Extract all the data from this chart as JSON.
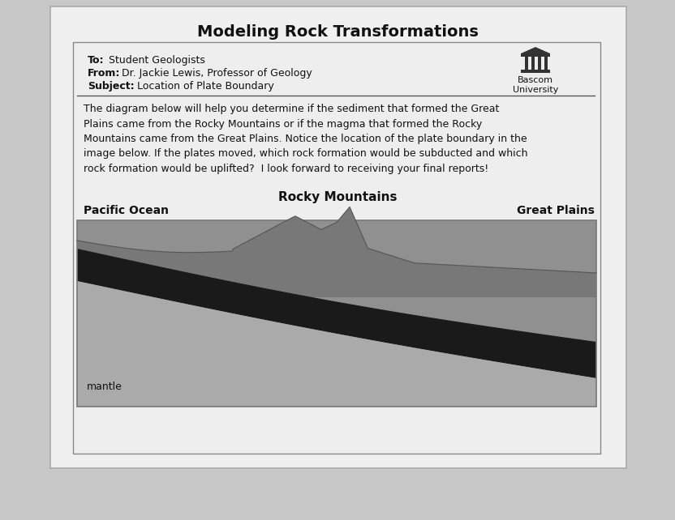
{
  "title": "Modeling Rock Transformations",
  "to_label": "To:",
  "to_rest": " Student Geologists",
  "from_label": "From:",
  "from_rest": " Dr. Jackie Lewis, Professor of Geology",
  "subject_label": "Subject:",
  "subject_rest": " Location of Plate Boundary",
  "university_name": "Bascom\nUniversity",
  "body_text": "The diagram below will help you determine if the sediment that formed the Great\nPlains came from the Rocky Mountains or if the magma that formed the Rocky\nMountains came from the Great Plains. Notice the location of the plate boundary in the\nimage below. If the plates moved, which rock formation would be subducted and which\nrock formation would be uplifted?  I look forward to receiving your final reports!",
  "diagram_title": "Rocky Mountains",
  "label_left": "Pacific Ocean",
  "label_right": "Great Plains",
  "label_bottom": "mantle",
  "outer_bg": "#c8c8c8",
  "paper_color": "#f0f0f0",
  "inner_paper": "#eeeeee",
  "diag_bg_top": "#888888",
  "diag_dark_band": "#222222",
  "diag_mid_gray": "#999999",
  "diag_light_gray": "#b8b8b8",
  "diag_surface_dark": "#555555"
}
